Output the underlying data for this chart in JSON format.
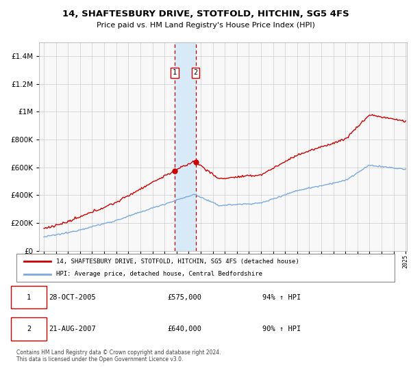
{
  "title": "14, SHAFTESBURY DRIVE, STOTFOLD, HITCHIN, SG5 4FS",
  "subtitle": "Price paid vs. HM Land Registry's House Price Index (HPI)",
  "legend_line1": "14, SHAFTESBURY DRIVE, STOTFOLD, HITCHIN, SG5 4FS (detached house)",
  "legend_line2": "HPI: Average price, detached house, Central Bedfordshire",
  "transaction1_date": "28-OCT-2005",
  "transaction1_price": 575000,
  "transaction1_price_str": "£575,000",
  "transaction1_pct": "94% ↑ HPI",
  "transaction2_date": "21-AUG-2007",
  "transaction2_price": 640000,
  "transaction2_price_str": "£640,000",
  "transaction2_pct": "90% ↑ HPI",
  "x_start_year": 1995,
  "x_end_year": 2025,
  "ylim_max": 1500000,
  "red_color": "#cc0000",
  "blue_color": "#7aaadd",
  "shading_color": "#d8eaf8",
  "grid_color": "#cccccc",
  "bg_color": "#f8f8f8",
  "footer": "Contains HM Land Registry data © Crown copyright and database right 2024.\nThis data is licensed under the Open Government Licence v3.0.",
  "t1_year": 2005.833,
  "t2_year": 2007.583
}
